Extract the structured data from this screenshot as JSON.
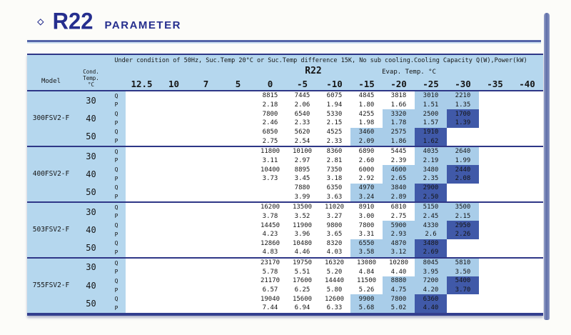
{
  "page_title": {
    "bullet": "◇",
    "title": "R22",
    "subtitle": "PARAMETER"
  },
  "table": {
    "condition_note": "Under condition of 50Hz, Suc.Temp 20°C or Suc.Temp difference 15K, No sub cooling.Cooling Capacity Q(W),Power(kW)",
    "refrigerant_label": "R22",
    "evap_label": "Evap. Temp. °C",
    "model_header": "Model",
    "cond_header_lines": [
      "Cond.",
      "Temp.",
      "°C"
    ],
    "evap_temps": [
      "12.5",
      "10",
      "7",
      "5",
      "0",
      "-5",
      "-10",
      "-15",
      "-20",
      "-25",
      "-30",
      "-35",
      "-40"
    ],
    "qp_labels": [
      "Q",
      "P"
    ],
    "colors": {
      "panel_blue": "#b5d7ee",
      "highlight_light": "#a9cde9",
      "highlight_dark": "#4059a8",
      "line_navy": "#2e3787",
      "title_navy": "#252e8e"
    },
    "models": [
      {
        "name": "300FSV2-F",
        "conds": [
          {
            "temp": "30",
            "light": [
              9,
              10
            ],
            "dark": [],
            "Q": [
              "",
              "",
              "",
              "",
              "8815",
              "7445",
              "6075",
              "4845",
              "3818",
              "3010",
              "2210",
              "",
              ""
            ],
            "P": [
              "",
              "",
              "",
              "",
              "2.18",
              "2.06",
              "1.94",
              "1.80",
              "1.66",
              "1.51",
              "1.35",
              "",
              ""
            ]
          },
          {
            "temp": "40",
            "light": [
              8,
              9
            ],
            "dark": [
              10
            ],
            "Q": [
              "",
              "",
              "",
              "",
              "7800",
              "6540",
              "5330",
              "4255",
              "3320",
              "2500",
              "1700",
              "",
              ""
            ],
            "P": [
              "",
              "",
              "",
              "",
              "2.46",
              "2.33",
              "2.15",
              "1.98",
              "1.78",
              "1.57",
              "1.39",
              "",
              ""
            ]
          },
          {
            "temp": "50",
            "light": [
              7,
              8
            ],
            "dark": [
              9
            ],
            "Q": [
              "",
              "",
              "",
              "",
              "6850",
              "5620",
              "4525",
              "3460",
              "2575",
              "1910",
              "",
              "",
              ""
            ],
            "P": [
              "",
              "",
              "",
              "",
              "2.75",
              "2.54",
              "2.33",
              "2.09",
              "1.86",
              "1.62",
              "",
              "",
              ""
            ]
          }
        ]
      },
      {
        "name": "400FSV2-F",
        "conds": [
          {
            "temp": "30",
            "light": [
              9,
              10
            ],
            "dark": [],
            "Q": [
              "",
              "",
              "",
              "",
              "11800",
              "10100",
              "8360",
              "6890",
              "5445",
              "4035",
              "2640",
              "",
              ""
            ],
            "P": [
              "",
              "",
              "",
              "",
              "3.11",
              "2.97",
              "2.81",
              "2.60",
              "2.39",
              "2.19",
              "1.99",
              "",
              ""
            ]
          },
          {
            "temp": "40",
            "light": [
              8,
              9
            ],
            "dark": [
              10
            ],
            "Q": [
              "",
              "",
              "",
              "",
              "10400",
              "8895",
              "7350",
              "6000",
              "4600",
              "3480",
              "2440",
              "",
              ""
            ],
            "P": [
              "",
              "",
              "",
              "",
              "3.73",
              "3.45",
              "3.18",
              "2.92",
              "2.65",
              "2.35",
              "2.08",
              "",
              ""
            ]
          },
          {
            "temp": "50",
            "light": [
              7,
              8
            ],
            "dark": [
              9
            ],
            "Q": [
              "",
              "",
              "",
              "",
              "",
              "7880",
              "6350",
              "4970",
              "3840",
              "2900",
              "",
              "",
              ""
            ],
            "P": [
              "",
              "",
              "",
              "",
              "",
              "3.99",
              "3.63",
              "3.24",
              "2.89",
              "2.50",
              "",
              "",
              ""
            ]
          }
        ]
      },
      {
        "name": "503FSV2-F",
        "conds": [
          {
            "temp": "30",
            "light": [
              9,
              10
            ],
            "dark": [],
            "Q": [
              "",
              "",
              "",
              "",
              "16200",
              "13500",
              "11020",
              "8910",
              "6810",
              "5150",
              "3500",
              "",
              ""
            ],
            "P": [
              "",
              "",
              "",
              "",
              "3.78",
              "3.52",
              "3.27",
              "3.00",
              "2.75",
              "2.45",
              "2.15",
              "",
              ""
            ]
          },
          {
            "temp": "40",
            "light": [
              8,
              9
            ],
            "dark": [
              10
            ],
            "Q": [
              "",
              "",
              "",
              "",
              "14450",
              "11900",
              "9800",
              "7800",
              "5900",
              "4330",
              "2950",
              "",
              ""
            ],
            "P": [
              "",
              "",
              "",
              "",
              "4.23",
              "3.96",
              "3.65",
              "3.31",
              "2.93",
              "2.6",
              "2.26",
              "",
              ""
            ]
          },
          {
            "temp": "50",
            "light": [
              7,
              8
            ],
            "dark": [
              9
            ],
            "Q": [
              "",
              "",
              "",
              "",
              "12860",
              "10480",
              "8320",
              "6550",
              "4870",
              "3480",
              "",
              "",
              ""
            ],
            "P": [
              "",
              "",
              "",
              "",
              "4.83",
              "4.46",
              "4.03",
              "3.58",
              "3.12",
              "2.69",
              "",
              "",
              ""
            ]
          }
        ]
      },
      {
        "name": "755FSV2-F",
        "conds": [
          {
            "temp": "30",
            "light": [
              9,
              10
            ],
            "dark": [],
            "Q": [
              "",
              "",
              "",
              "",
              "23170",
              "19750",
              "16320",
              "13080",
              "10280",
              "8045",
              "5810",
              "",
              ""
            ],
            "P": [
              "",
              "",
              "",
              "",
              "5.78",
              "5.51",
              "5.20",
              "4.84",
              "4.40",
              "3.95",
              "3.50",
              "",
              ""
            ]
          },
          {
            "temp": "40",
            "light": [
              8,
              9
            ],
            "dark": [
              10
            ],
            "Q": [
              "",
              "",
              "",
              "",
              "21170",
              "17600",
              "14440",
              "11500",
              "8880",
              "7200",
              "5400",
              "",
              ""
            ],
            "P": [
              "",
              "",
              "",
              "",
              "6.57",
              "6.25",
              "5.80",
              "5.26",
              "4.75",
              "4.20",
              "3.70",
              "",
              ""
            ]
          },
          {
            "temp": "50",
            "light": [
              7,
              8
            ],
            "dark": [
              9
            ],
            "Q": [
              "",
              "",
              "",
              "",
              "19040",
              "15600",
              "12600",
              "9900",
              "7800",
              "6360",
              "",
              "",
              ""
            ],
            "P": [
              "",
              "",
              "",
              "",
              "7.44",
              "6.94",
              "6.33",
              "5.68",
              "5.02",
              "4.40",
              "",
              "",
              ""
            ]
          }
        ]
      }
    ]
  }
}
